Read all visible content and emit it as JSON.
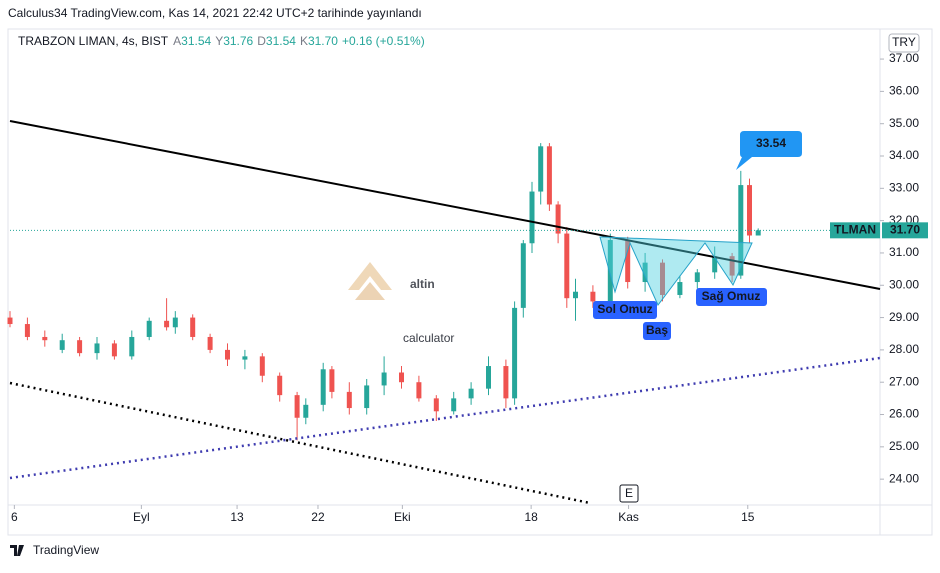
{
  "chart_data": {
    "type": "candlestick",
    "publisher": "Calculus34 TradingView.com, Kas 14, 2021 22:42 UTC+2 tarihinde yayınlandı",
    "title": "TRABZON LIMAN, 4s, BIST",
    "ohlc_text": [
      {
        "key": "A",
        "value": "31.54"
      },
      {
        "key": "Y",
        "value": "31.76"
      },
      {
        "key": "D",
        "value": "31.54"
      },
      {
        "key": "K",
        "value": "31.70"
      }
    ],
    "change_text": "+0.16 (+0.51%)",
    "currency": "TRY",
    "symbol": "TLMAN",
    "last_price_label": "31.70",
    "watermark": [
      "altin",
      "calculator"
    ],
    "annotations": [
      "Sol Omuz",
      "Baş",
      "Sağ Omuz",
      "33.54"
    ],
    "event_marker": "E",
    "footer": "TradingView",
    "up_color": "#26a69a",
    "down_color": "#ef5350",
    "xlim": [
      0,
      100
    ],
    "xticks": [
      {
        "value": 0.5,
        "label": "6"
      },
      {
        "value": 15.1,
        "label": "Eyl"
      },
      {
        "value": 26.1,
        "label": "13"
      },
      {
        "value": 35.4,
        "label": "22"
      },
      {
        "value": 45.1,
        "label": "Eki"
      },
      {
        "value": 59.9,
        "label": "18"
      },
      {
        "value": 71.1,
        "label": "Kas"
      },
      {
        "value": 84.8,
        "label": "15"
      }
    ],
    "ylim": [
      23.2,
      37.59
    ],
    "yticks": [
      {
        "value": 24,
        "label": "24.00"
      },
      {
        "value": 25,
        "label": "25.00"
      },
      {
        "value": 26,
        "label": "26.00"
      },
      {
        "value": 27,
        "label": "27.00"
      },
      {
        "value": 28,
        "label": "28.00"
      },
      {
        "value": 29,
        "label": "29.00"
      },
      {
        "value": 30,
        "label": "30.00"
      },
      {
        "value": 31,
        "label": "31.00"
      },
      {
        "value": 32,
        "label": "32.00"
      },
      {
        "value": 33,
        "label": "33.00"
      },
      {
        "value": 34,
        "label": "34.00"
      },
      {
        "value": 35,
        "label": "35.00"
      },
      {
        "value": 36,
        "label": "36.00"
      },
      {
        "value": 37,
        "label": "37.00"
      }
    ],
    "x": [
      0,
      2,
      4,
      6,
      8,
      10,
      12,
      14,
      16,
      18,
      19,
      21,
      23,
      25,
      27,
      29,
      31,
      33,
      34,
      36,
      37,
      39,
      41,
      43,
      45,
      47,
      49,
      51,
      53,
      55,
      57,
      58,
      59,
      60,
      61,
      62,
      63,
      64,
      65,
      67,
      69,
      71,
      73,
      75,
      77,
      79,
      81,
      83,
      84,
      85,
      86
    ],
    "open": [
      29.0,
      28.8,
      28.4,
      28.0,
      28.3,
      27.9,
      28.2,
      27.8,
      28.4,
      28.9,
      28.7,
      29.0,
      28.4,
      28.0,
      27.7,
      27.8,
      27.2,
      26.6,
      25.9,
      26.3,
      27.4,
      26.7,
      26.2,
      26.9,
      27.3,
      27.0,
      26.5,
      26.1,
      26.5,
      26.8,
      27.5,
      26.5,
      29.3,
      31.3,
      32.9,
      34.3,
      32.5,
      31.6,
      29.6,
      29.8,
      29.5,
      31.4,
      30.1,
      30.7,
      29.7,
      30.1,
      30.4,
      30.9,
      30.3,
      33.1,
      31.54
    ],
    "high": [
      29.2,
      29.0,
      28.6,
      28.5,
      28.4,
      28.4,
      28.3,
      28.6,
      29.0,
      29.6,
      29.2,
      29.1,
      28.5,
      28.2,
      28.0,
      27.9,
      27.3,
      26.7,
      26.5,
      27.6,
      27.5,
      27.0,
      27.1,
      27.8,
      27.5,
      27.2,
      26.6,
      26.7,
      27.0,
      27.8,
      27.7,
      29.5,
      31.4,
      33.2,
      34.4,
      34.4,
      32.6,
      31.8,
      30.2,
      30.0,
      31.6,
      31.5,
      31.0,
      30.8,
      30.3,
      30.5,
      31.2,
      31.0,
      33.54,
      33.3,
      31.76
    ],
    "low": [
      28.7,
      28.3,
      28.1,
      27.9,
      27.8,
      27.7,
      27.7,
      27.7,
      28.3,
      28.6,
      28.5,
      28.3,
      27.9,
      27.5,
      27.4,
      27.0,
      26.4,
      25.2,
      25.7,
      26.1,
      26.5,
      26.0,
      26.0,
      26.6,
      26.8,
      26.4,
      25.8,
      26.0,
      26.3,
      26.6,
      26.2,
      26.3,
      29.0,
      31.0,
      32.5,
      32.3,
      31.3,
      29.3,
      28.9,
      29.3,
      29.3,
      29.9,
      29.8,
      29.5,
      29.6,
      29.9,
      30.2,
      30.1,
      30.2,
      31.3,
      31.54
    ],
    "close": [
      28.8,
      28.4,
      28.3,
      28.3,
      27.9,
      28.2,
      27.8,
      28.4,
      28.9,
      28.7,
      29.0,
      28.4,
      28.0,
      27.7,
      27.8,
      27.2,
      26.6,
      25.9,
      26.3,
      27.4,
      26.7,
      26.2,
      26.9,
      27.3,
      27.0,
      26.5,
      26.1,
      26.5,
      26.8,
      27.5,
      26.5,
      29.3,
      31.3,
      32.9,
      34.3,
      32.5,
      31.6,
      29.6,
      29.8,
      29.5,
      31.4,
      30.1,
      30.7,
      29.7,
      30.1,
      30.4,
      30.9,
      30.3,
      33.1,
      31.54,
      31.7
    ]
  }
}
